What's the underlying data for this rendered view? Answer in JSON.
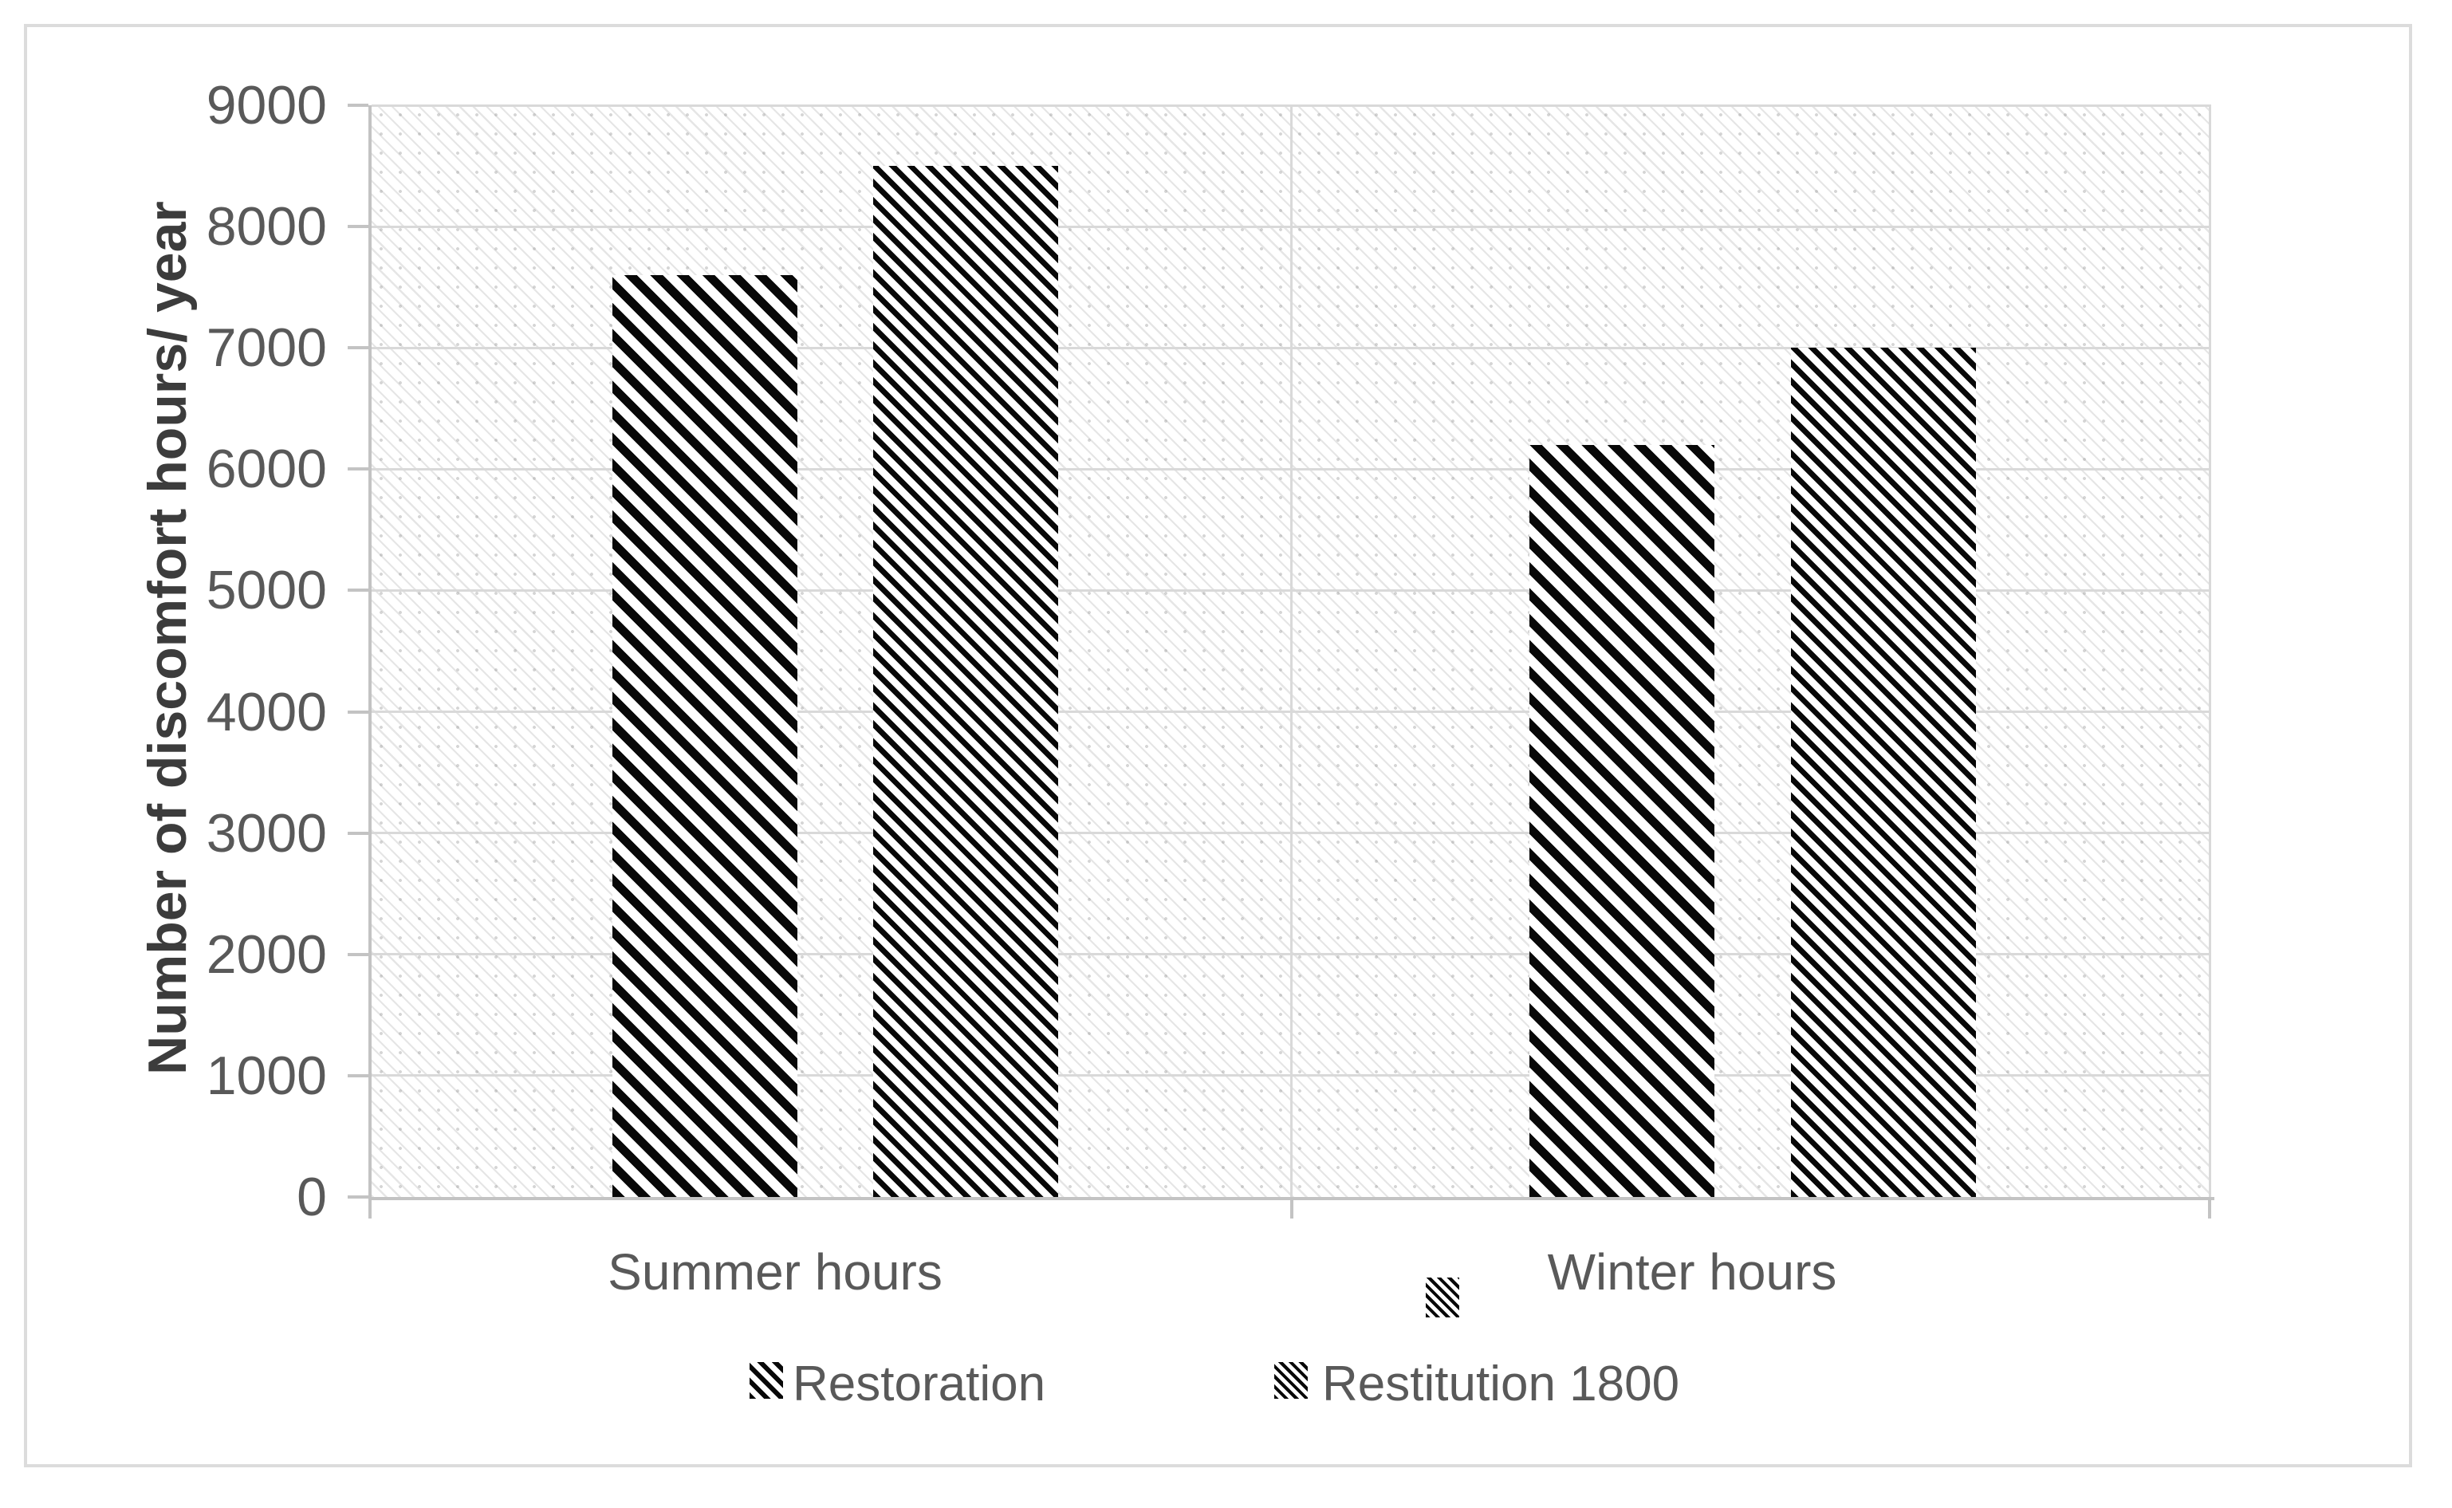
{
  "figure": {
    "kind": "excel-style clustered bar chart, black & white pattern fills",
    "background": "#ffffff"
  },
  "chart_data": {
    "type": "bar",
    "ylabel": "Number of discomfort hours/ year",
    "xlabel": "",
    "categories": [
      "Summer hours",
      "Winter hours"
    ],
    "series": [
      {
        "name": "Restoration",
        "pattern": "wide-downward-diagonal",
        "values": [
          7600,
          6200
        ]
      },
      {
        "name": "Restitution 1800",
        "pattern": "narrow-downward-diagonal",
        "values": [
          8500,
          7000
        ]
      }
    ],
    "ylim": [
      0,
      9000
    ],
    "ytick_step": 1000,
    "yticks": [
      9000,
      8000,
      7000,
      6000,
      5000,
      4000,
      3000,
      2000,
      1000,
      0
    ],
    "grid": {
      "horizontal_major": true,
      "vertical_category_boundaries": true
    },
    "legend_position": "bottom",
    "plot_background": "light-downward-diagonal-texture-with-dots"
  },
  "artifacts": {
    "floating_swatch": {
      "pattern": "narrow-downward-diagonal",
      "location": "left of Winter hours label"
    }
  },
  "colors": {
    "text": "#595959",
    "axis_title_text": "#3c3c3c",
    "gridline": "#d9d9d9",
    "axis_line": "#c3c3c3",
    "bar_pattern_ink": "#000000",
    "figure_border": "#dcdcdc",
    "background": "#ffffff"
  }
}
